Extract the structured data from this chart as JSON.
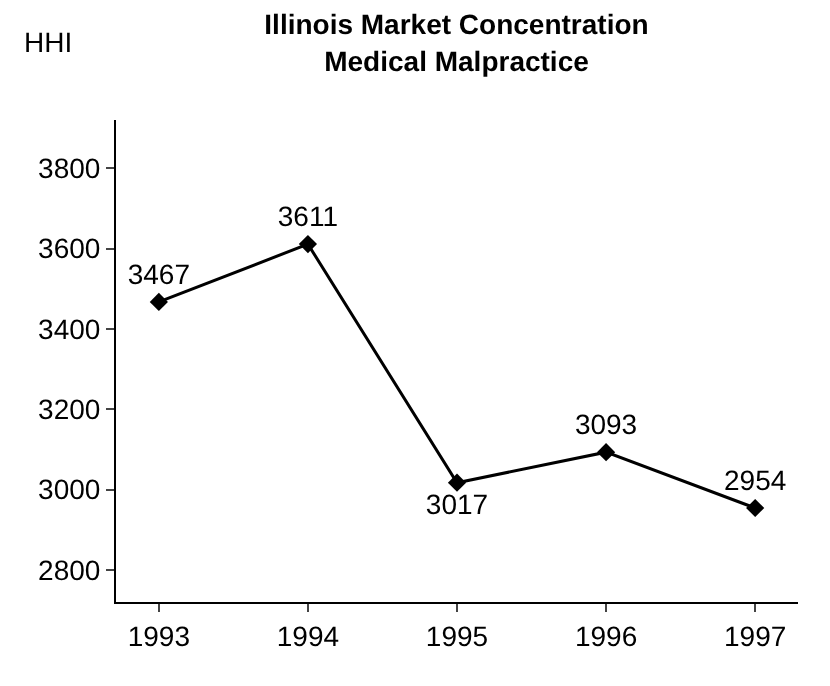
{
  "chart_data": {
    "type": "line",
    "title": "Illinois Market Concentration\nMedical Malpractice",
    "ylabel": "HHI",
    "categories": [
      "1993",
      "1994",
      "1995",
      "1996",
      "1997"
    ],
    "series": [
      {
        "color": "#000000",
        "values": [
          3467,
          3611,
          3017,
          3093,
          2954
        ]
      }
    ],
    "ylim": [
      2720,
      3920
    ],
    "yticks": [
      2800,
      3000,
      3200,
      3400,
      3600,
      3800
    ],
    "grid": false,
    "marker": "diamond",
    "line_style": "solid",
    "data_labels": true
  }
}
